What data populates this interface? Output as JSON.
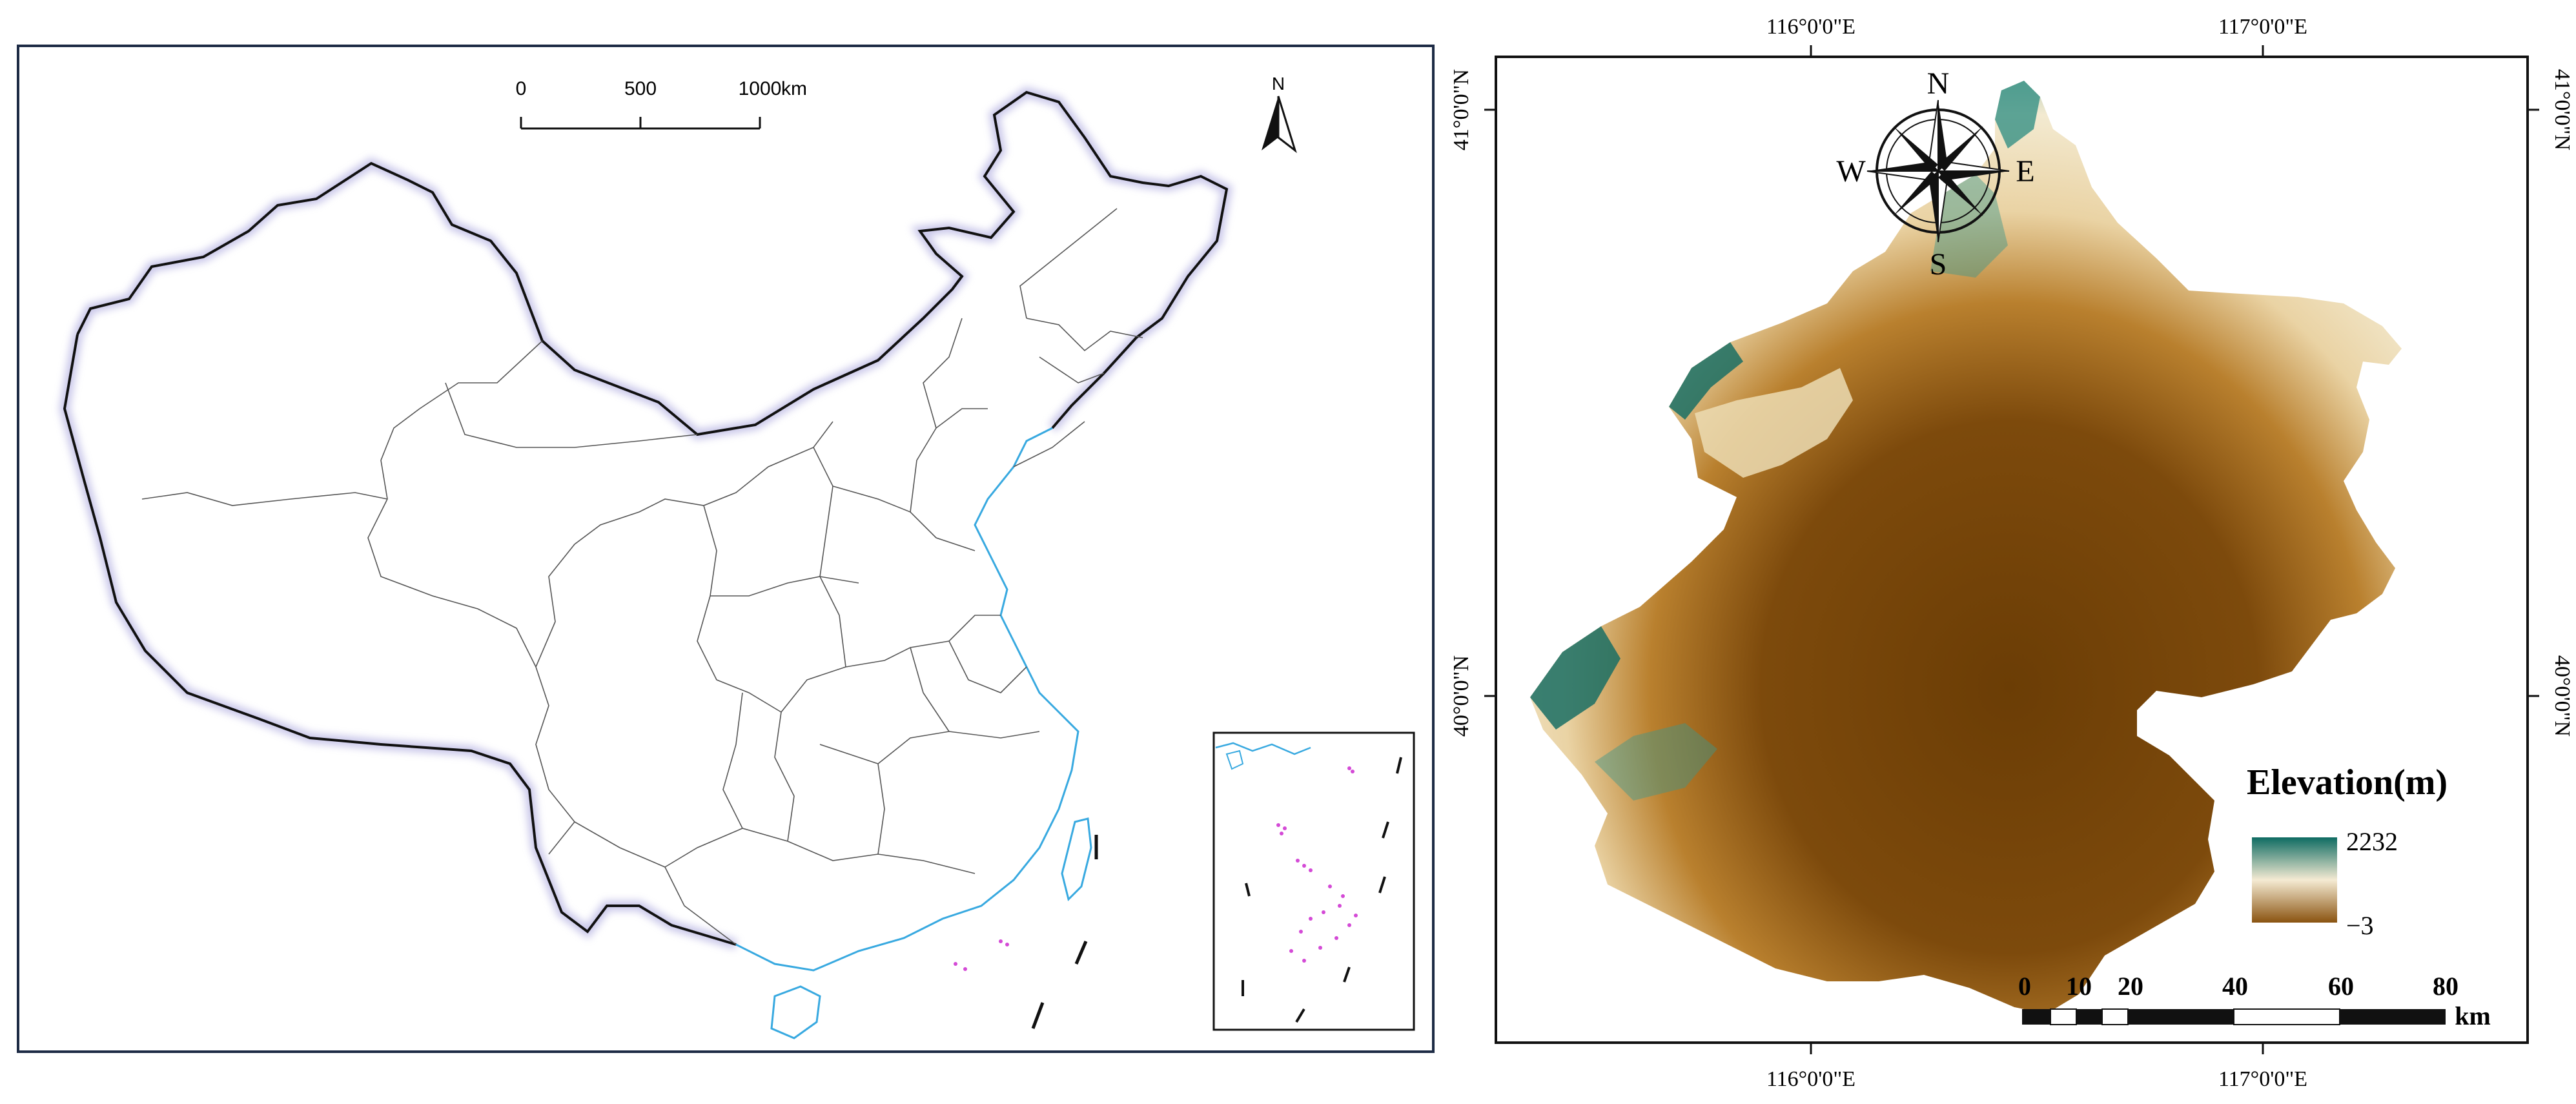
{
  "china_map": {
    "scale_bar": {
      "ticks": [
        "0",
        "500",
        "1000"
      ],
      "unit": "km"
    },
    "north_arrow": {
      "label": "N"
    }
  },
  "beijing_map": {
    "top_lon_labels": [
      "116°0'0\"E",
      "117°0'0\"E"
    ],
    "bottom_lon_labels": [
      "116°0'0\"E",
      "117°0'0\"E"
    ],
    "left_lat_labels": [
      "41°0'0\"N",
      "40°0'0\"N"
    ],
    "right_lat_labels": [
      "41°0'0\"N",
      "40°0'0\"N"
    ],
    "compass": {
      "n": "N",
      "s": "S",
      "e": "E",
      "w": "W"
    },
    "legend": {
      "title": "Elevation(m)",
      "max": "2232",
      "min": "−3",
      "colors": {
        "high": "#0e6b62",
        "mid": "#f5ebd3",
        "low": "#8a5310"
      }
    },
    "scale_bar": {
      "ticks": [
        "0",
        "10",
        "20",
        "40",
        "60",
        "80"
      ],
      "unit": "km"
    }
  },
  "colors": {
    "frame": "#1d2b45",
    "coast": "#38a9e0",
    "islands": "#d44ad6"
  }
}
